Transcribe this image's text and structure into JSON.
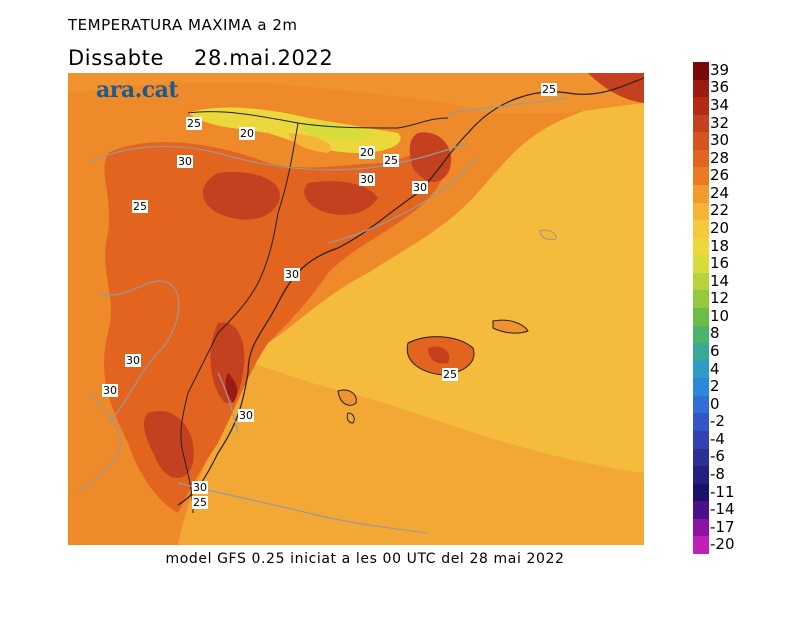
{
  "header": {
    "title": "TEMPERATURA MAXIMA a 2m",
    "day": "Dissabte",
    "date": "28.mai.2022"
  },
  "brand": {
    "logo_text": "ara.cat"
  },
  "footer": {
    "text": "model GFS 0.25 iniciat a les 00 UTC del 28 mai 2022"
  },
  "contour_labels": [
    "25",
    "20",
    "20",
    "25",
    "30",
    "30",
    "30",
    "25",
    "30",
    "30",
    "30",
    "30",
    "25",
    "30",
    "25",
    "25"
  ],
  "colorbar": {
    "labels": [
      "39",
      "36",
      "34",
      "32",
      "30",
      "28",
      "26",
      "24",
      "22",
      "20",
      "18",
      "16",
      "14",
      "12",
      "10",
      "8",
      "6",
      "4",
      "2",
      "0",
      "-2",
      "-4",
      "-6",
      "-8",
      "-11",
      "-14",
      "-17",
      "-20"
    ],
    "colors": [
      "#7a0a0a",
      "#9c1a12",
      "#b52a17",
      "#c4401f",
      "#d3541f",
      "#e2641f",
      "#ec7a22",
      "#f39a2c",
      "#f7b436",
      "#f5c93b",
      "#ecd83c",
      "#d6dd3a",
      "#b5d33b",
      "#92c93e",
      "#6cbd45",
      "#4cb36a",
      "#3aa896",
      "#2e9cc6",
      "#2b8ad8",
      "#2f6fd6",
      "#3456c7",
      "#3441b0",
      "#2f2f98",
      "#23207f",
      "#1a1168",
      "#4c0f8a",
      "#8b14a6",
      "#c020b8"
    ]
  }
}
